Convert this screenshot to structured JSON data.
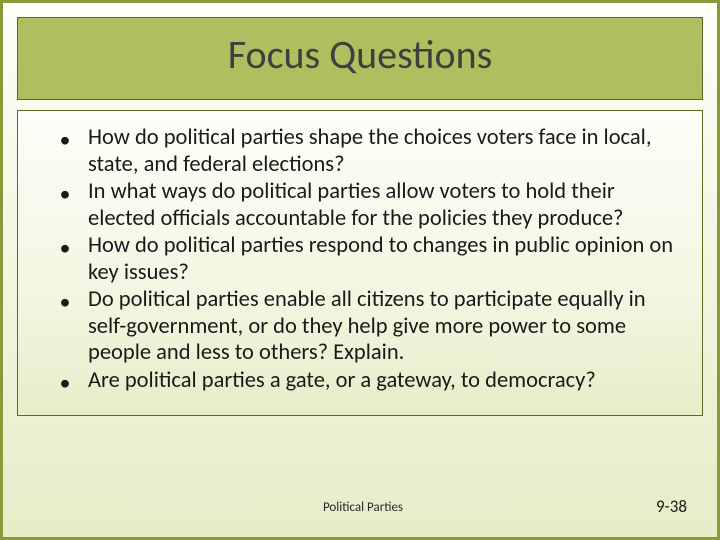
{
  "slide": {
    "title": "Focus Questions",
    "bullets": [
      "How do political parties shape the choices voters face in local, state, and federal elections?",
      "In what ways do political parties allow voters to hold their elected officials accountable for the policies they produce?",
      "How do political parties respond to changes in public opinion on key issues?",
      "Do political parties enable all citizens to participate equally in self-government, or do they help give more power to some people and less to others? Explain.",
      "Are political parties a gate, or a gateway, to democracy?"
    ],
    "footer_center": "Political Parties",
    "footer_right": "9-38"
  },
  "style": {
    "accent_fill": "#aebf5f",
    "accent_border": "#5a6a20",
    "slide_border": "#8a9a3a",
    "title_color": "#3f3f3f",
    "body_color": "#1a1a1a",
    "title_fontsize": 40,
    "body_fontsize": 22.5,
    "footer_fontsize": 13,
    "pagenum_fontsize": 17,
    "bg_gradient_top": "#fdfef8",
    "bg_gradient_bottom": "#e8ecc8"
  }
}
